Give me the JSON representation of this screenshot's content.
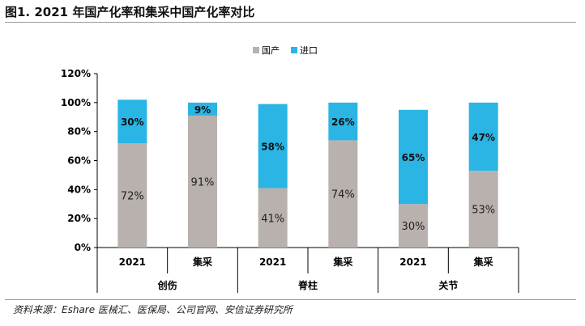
{
  "title": "图1. 2021 年国产化率和集采中国产化率对比",
  "source": "资料来源：Eshare 医械汇、医保局、公司官网、安信证券研究所",
  "colors": {
    "domestic": "#b8b1ae",
    "import": "#2ab5e4",
    "axis": "#000000"
  },
  "chart_data": {
    "type": "bar",
    "stacked": true,
    "legend_position": "top-center",
    "grid": false,
    "ylim": [
      0,
      120
    ],
    "yticks": [
      "0%",
      "20%",
      "40%",
      "60%",
      "80%",
      "100%",
      "120%"
    ],
    "categories": [
      "2021",
      "集采",
      "2021",
      "集采",
      "2021",
      "集采"
    ],
    "groups": [
      {
        "name": "创伤",
        "span": [
          0,
          1
        ]
      },
      {
        "name": "脊柱",
        "span": [
          2,
          3
        ]
      },
      {
        "name": "关节",
        "span": [
          4,
          5
        ]
      }
    ],
    "series": [
      {
        "name": "国产",
        "values": [
          72,
          91,
          41,
          74,
          30,
          53
        ],
        "labels": [
          "72%",
          "91%",
          "41%",
          "74%",
          "30%",
          "53%"
        ]
      },
      {
        "name": "进口",
        "values": [
          30,
          9,
          58,
          26,
          65,
          47
        ],
        "labels": [
          "30%",
          "9%",
          "58%",
          "26%",
          "65%",
          "47%"
        ]
      }
    ]
  }
}
